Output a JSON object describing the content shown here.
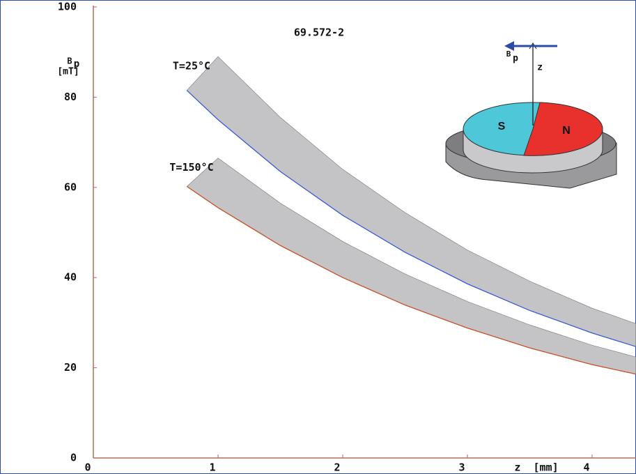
{
  "chart_data": {
    "type": "band",
    "title": "69.572-2",
    "ylabel_symbol": "B",
    "ylabel_sub": "p",
    "ylabel_unit": "[mT]",
    "xlabel": "z  [mm]",
    "xlim": [
      0,
      4.35
    ],
    "ylim": [
      0,
      100
    ],
    "xticks": [
      0,
      1,
      2,
      3,
      4
    ],
    "yticks": [
      0,
      20,
      40,
      60,
      80,
      100
    ],
    "series": [
      {
        "name": "T=25°C",
        "color": "#3b5bd6",
        "fill": "#c4c4c6",
        "x": [
          0.75,
          1,
          1.5,
          2,
          2.5,
          3,
          3.5,
          4,
          4.35
        ],
        "upper": [
          null,
          89,
          75.5,
          64,
          54.4,
          46.1,
          39.2,
          33.2,
          29.8
        ],
        "lower": [
          81.5,
          75,
          63.5,
          53.8,
          45.6,
          38.6,
          32.7,
          27.7,
          24.7
        ]
      },
      {
        "name": "T=150°C",
        "color": "#c8502a",
        "fill": "#c4c4c6",
        "x": [
          0.75,
          1,
          1.5,
          2,
          2.5,
          3,
          3.5,
          4,
          4.35
        ],
        "upper": [
          null,
          66.5,
          56.5,
          48.0,
          40.8,
          34.7,
          29.5,
          25.0,
          22.4
        ],
        "lower": [
          60.2,
          55.5,
          47.1,
          40.0,
          33.9,
          28.8,
          24.4,
          20.7,
          18.6
        ]
      }
    ],
    "inset": {
      "south": "S",
      "north": "N",
      "field": "B",
      "field_sub": "p",
      "axis": "z"
    }
  }
}
